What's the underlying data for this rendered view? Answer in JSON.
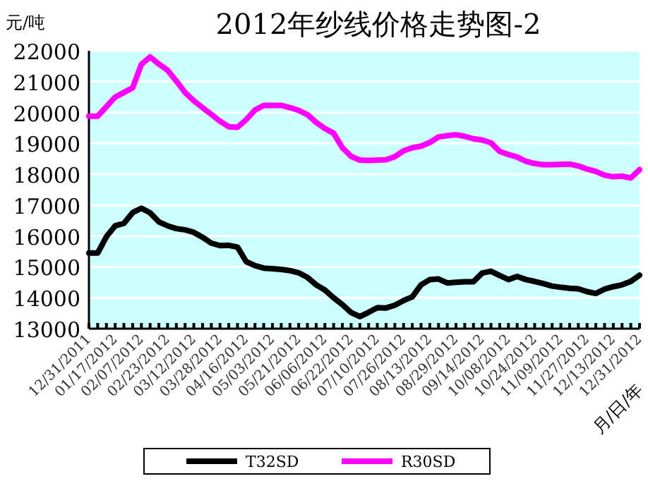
{
  "chart_data": {
    "type": "line",
    "title": "2012年纱线价格走势图-2",
    "ylabel": "元/吨",
    "xlabel": "月/日/年",
    "ylim": [
      13000,
      22000
    ],
    "yticks": [
      13000,
      14000,
      15000,
      16000,
      17000,
      18000,
      19000,
      20000,
      21000,
      22000
    ],
    "categories": [
      "12/31/2011",
      null,
      null,
      "01/17/2012",
      null,
      null,
      "02/07/2012",
      null,
      null,
      "02/23/2012",
      null,
      null,
      "03/12/2012",
      null,
      null,
      "03/28/2012",
      null,
      null,
      "04/16/2012",
      null,
      null,
      "05/03/2012",
      null,
      null,
      "05/21/2012",
      null,
      null,
      "06/06/2012",
      null,
      null,
      "06/22/2012",
      null,
      null,
      "07/10/2012",
      null,
      null,
      "07/26/2012",
      null,
      null,
      "08/13/2012",
      null,
      null,
      "08/29/2012",
      null,
      null,
      "09/14/2012",
      null,
      null,
      "10/08/2012",
      null,
      null,
      "10/24/2012",
      null,
      null,
      "11/09/2012",
      null,
      null,
      "11/27/2012",
      null,
      null,
      "12/13/2012",
      null,
      null,
      "12/31/2012"
    ],
    "grid": "y",
    "legend": "bottom",
    "marker": "none",
    "line_style": "solid",
    "series": [
      {
        "name": "T32SD",
        "color": "#000000",
        "values": [
          15450,
          15450,
          15980,
          16330,
          16410,
          16760,
          16900,
          16750,
          16460,
          16330,
          16240,
          16200,
          16120,
          15960,
          15770,
          15690,
          15700,
          15640,
          15170,
          15040,
          14960,
          14940,
          14920,
          14880,
          14810,
          14660,
          14420,
          14250,
          14000,
          13780,
          13520,
          13390,
          13530,
          13680,
          13670,
          13760,
          13910,
          14030,
          14420,
          14590,
          14610,
          14480,
          14500,
          14520,
          14520,
          14800,
          14860,
          14720,
          14590,
          14690,
          14590,
          14530,
          14460,
          14380,
          14340,
          14310,
          14290,
          14200,
          14140,
          14280,
          14360,
          14420,
          14530,
          14730
        ]
      },
      {
        "name": "R30SD",
        "color": "#ff00ff",
        "values": [
          19880,
          19880,
          20190,
          20500,
          20650,
          20800,
          21560,
          21800,
          21570,
          21370,
          21020,
          20650,
          20380,
          20160,
          19940,
          19720,
          19540,
          19520,
          19770,
          20080,
          20230,
          20230,
          20230,
          20160,
          20070,
          19930,
          19680,
          19480,
          19330,
          18860,
          18580,
          18460,
          18450,
          18460,
          18470,
          18570,
          18760,
          18860,
          18910,
          19030,
          19210,
          19250,
          19280,
          19230,
          19150,
          19110,
          19020,
          18740,
          18640,
          18560,
          18420,
          18350,
          18310,
          18310,
          18320,
          18330,
          18270,
          18170,
          18090,
          17970,
          17920,
          17940,
          17880,
          18150
        ]
      }
    ]
  }
}
